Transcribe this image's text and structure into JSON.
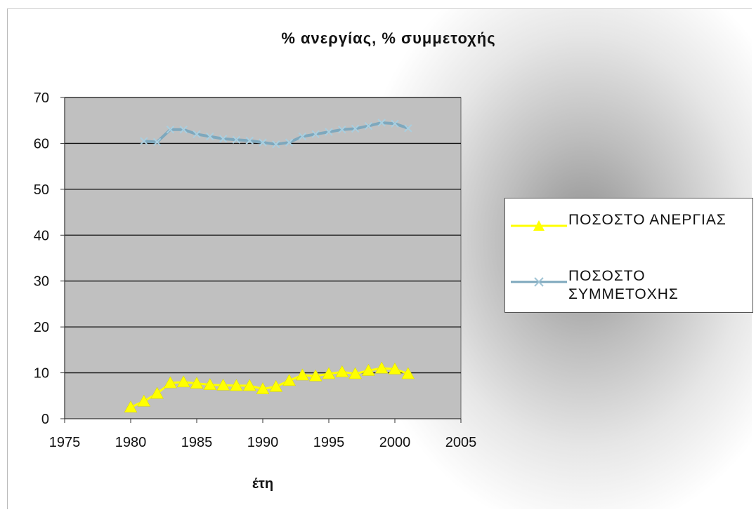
{
  "chart_data": {
    "type": "line",
    "title": "% ανεργίας, % συμμετοχής",
    "xlabel": "έτη",
    "ylabel": "",
    "xlim": [
      1975,
      2005
    ],
    "ylim": [
      0,
      70
    ],
    "x_ticks": [
      1975,
      1980,
      1985,
      1990,
      1995,
      2000,
      2005
    ],
    "y_ticks": [
      0,
      10,
      20,
      30,
      40,
      50,
      60,
      70
    ],
    "grid": "horizontal",
    "legend_position": "right",
    "series": [
      {
        "name": "ΠΟΣΟΣΤΟ ΑΝΕΡΓΙΑΣ",
        "color": "#ffff00",
        "marker": "triangle",
        "x": [
          1980,
          1981,
          1982,
          1983,
          1984,
          1985,
          1986,
          1987,
          1988,
          1989,
          1990,
          1991,
          1992,
          1993,
          1994,
          1995,
          1996,
          1997,
          1998,
          1999,
          2000,
          2001
        ],
        "values": [
          2.5,
          3.8,
          5.5,
          7.8,
          8.0,
          7.7,
          7.4,
          7.3,
          7.2,
          7.2,
          6.5,
          7.0,
          8.3,
          9.5,
          9.3,
          9.8,
          10.2,
          9.8,
          10.5,
          11.0,
          10.8,
          9.8
        ]
      },
      {
        "name": "ΠΟΣΟΣΤΟ ΣΥΜΜΕΤΟΧΗΣ",
        "color": "#7ea8bd",
        "marker": "x",
        "x": [
          1981,
          1982,
          1983,
          1984,
          1985,
          1986,
          1987,
          1988,
          1989,
          1990,
          1991,
          1992,
          1993,
          1994,
          1995,
          1996,
          1997,
          1998,
          1999,
          2000,
          2001
        ],
        "values": [
          60.5,
          60.3,
          63.0,
          63.0,
          62.0,
          61.5,
          61.0,
          60.8,
          60.6,
          60.2,
          59.8,
          60.2,
          61.5,
          62.0,
          62.5,
          63.0,
          63.2,
          63.8,
          64.5,
          64.3,
          63.3
        ]
      }
    ]
  }
}
